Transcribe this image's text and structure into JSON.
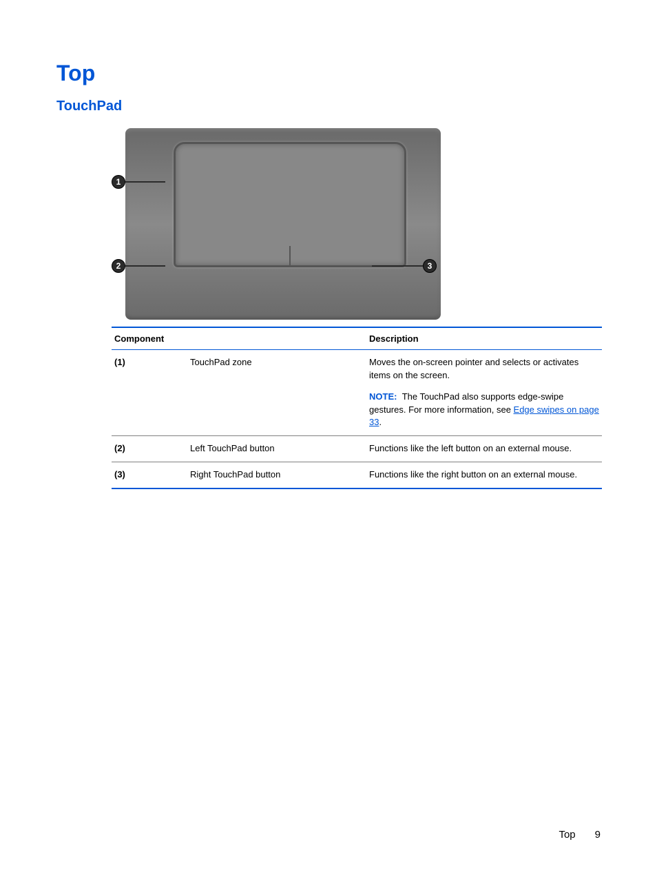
{
  "headings": {
    "main": "Top",
    "sub": "TouchPad"
  },
  "figure": {
    "callouts": [
      "1",
      "2",
      "3"
    ],
    "colors": {
      "base_gradient_top": "#6a6a6a",
      "base_gradient_mid": "#8a8a8a",
      "pad_fill": "#888888",
      "pad_border": "#555555",
      "callout_bg": "#2b2b2b",
      "callout_fg": "#ffffff"
    }
  },
  "table": {
    "headers": {
      "component": "Component",
      "description": "Description"
    },
    "border_color": "#0056d6",
    "row_border_color": "#808080",
    "rows": [
      {
        "num": "(1)",
        "component": "TouchPad zone",
        "desc_line1": "Moves the on-screen pointer and selects or activates items on the screen.",
        "note_label": "NOTE:",
        "note_text_before": "The TouchPad also supports edge-swipe gestures. For more information, see ",
        "note_link_text": "Edge swipes on page 33",
        "note_text_after": "."
      },
      {
        "num": "(2)",
        "component": "Left TouchPad button",
        "desc": "Functions like the left button on an external mouse."
      },
      {
        "num": "(3)",
        "component": "Right TouchPad button",
        "desc": "Functions like the right button on an external mouse."
      }
    ]
  },
  "footer": {
    "section": "Top",
    "page": "9"
  },
  "colors": {
    "heading_blue": "#0056d6",
    "link_blue": "#0056d6",
    "text": "#000000",
    "background": "#ffffff"
  }
}
